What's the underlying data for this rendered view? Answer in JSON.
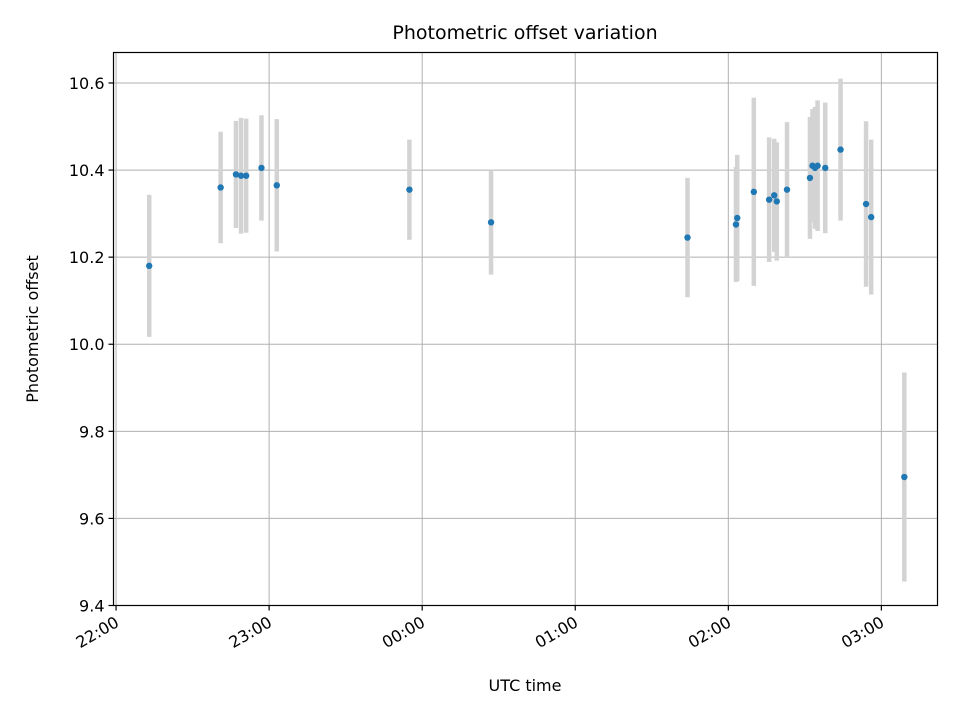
{
  "chart_data": {
    "type": "scatter",
    "title": "Photometric offset variation",
    "xlabel": "UTC time",
    "ylabel": "Photometric offset",
    "xlim": [
      "21:59:00",
      "03:22:00"
    ],
    "ylim": [
      9.4,
      10.67
    ],
    "xticks": [
      "22:00",
      "23:00",
      "00:00",
      "01:00",
      "02:00",
      "03:00"
    ],
    "yticks": [
      9.4,
      9.6,
      9.8,
      10.0,
      10.2,
      10.4,
      10.6
    ],
    "grid": true,
    "colors": {
      "point": "#1f77b4",
      "errorbar": "#d3d3d3",
      "grid": "#b0b0b0"
    },
    "points": [
      {
        "time": "22:13:00",
        "y": 10.18,
        "err": 0.163
      },
      {
        "time": "22:41:00",
        "y": 10.36,
        "err": 0.128
      },
      {
        "time": "22:47:00",
        "y": 10.39,
        "err": 0.123
      },
      {
        "time": "22:49:00",
        "y": 10.387,
        "err": 0.133
      },
      {
        "time": "22:51:00",
        "y": 10.387,
        "err": 0.131
      },
      {
        "time": "22:57:00",
        "y": 10.405,
        "err": 0.121
      },
      {
        "time": "23:03:00",
        "y": 10.365,
        "err": 0.152
      },
      {
        "time": "23:55:00",
        "y": 10.355,
        "err": 0.115
      },
      {
        "time": "00:27:00",
        "y": 10.28,
        "err": 0.12
      },
      {
        "time": "01:44:00",
        "y": 10.245,
        "err": 0.137
      },
      {
        "time": "02:03:00",
        "y": 10.275,
        "err": 0.132
      },
      {
        "time": "02:03:30",
        "y": 10.29,
        "err": 0.145
      },
      {
        "time": "02:10:00",
        "y": 10.35,
        "err": 0.216
      },
      {
        "time": "02:16:00",
        "y": 10.332,
        "err": 0.143
      },
      {
        "time": "02:18:00",
        "y": 10.342,
        "err": 0.13
      },
      {
        "time": "02:19:00",
        "y": 10.328,
        "err": 0.136
      },
      {
        "time": "02:23:00",
        "y": 10.355,
        "err": 0.155
      },
      {
        "time": "02:32:00",
        "y": 10.382,
        "err": 0.14
      },
      {
        "time": "02:33:00",
        "y": 10.41,
        "err": 0.13
      },
      {
        "time": "02:34:00",
        "y": 10.405,
        "err": 0.14
      },
      {
        "time": "02:35:00",
        "y": 10.41,
        "err": 0.15
      },
      {
        "time": "02:38:00",
        "y": 10.405,
        "err": 0.15
      },
      {
        "time": "02:44:00",
        "y": 10.447,
        "err": 0.163
      },
      {
        "time": "02:54:00",
        "y": 10.322,
        "err": 0.19
      },
      {
        "time": "02:56:00",
        "y": 10.292,
        "err": 0.178
      },
      {
        "time": "03:09:00",
        "y": 9.695,
        "err": 0.24
      }
    ]
  }
}
